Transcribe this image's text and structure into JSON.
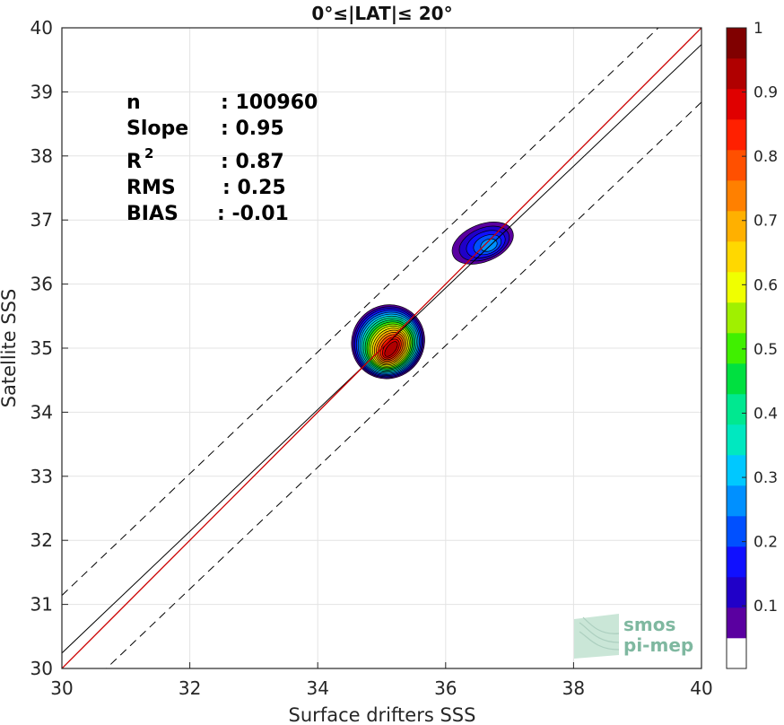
{
  "chart_data": {
    "type": "heatmap",
    "title": "0°≤|LAT|≤ 20°",
    "xlabel": "Surface drifters SSS",
    "ylabel": "Satellite SSS",
    "xlim": [
      30,
      40
    ],
    "ylim": [
      30,
      40
    ],
    "xticks": [
      "30",
      "32",
      "34",
      "36",
      "38",
      "40"
    ],
    "yticks": [
      "30",
      "31",
      "32",
      "33",
      "34",
      "35",
      "36",
      "37",
      "38",
      "39",
      "40"
    ],
    "grid": true,
    "stats": [
      {
        "label": "n",
        "value": ": 100960"
      },
      {
        "label": "Slope",
        "value": ": 0.95"
      },
      {
        "label": "R",
        "sup": "2",
        "value": ": 0.87"
      },
      {
        "label": "RMS",
        "value": ": 0.25"
      },
      {
        "label": "BIAS",
        "value": ": -0.01"
      }
    ],
    "lines": {
      "identity": {
        "slope": 1.0,
        "intercept": 0.0,
        "color": "#cc0000"
      },
      "fit": {
        "slope": 0.95,
        "intercept": 1.74,
        "color": "#000000"
      },
      "bounds_offset": 0.9
    },
    "density_peaks": [
      {
        "x": 35.1,
        "y": 35.1,
        "value": 1.0
      },
      {
        "x": 36.7,
        "y": 36.6,
        "value": 0.3
      }
    ],
    "colorbar": {
      "ticks": [
        "0.1",
        "0.2",
        "0.3",
        "0.4",
        "0.5",
        "0.6",
        "0.7",
        "0.8",
        "0.9",
        "1"
      ],
      "colors": [
        "#ffffff",
        "#5a00a0",
        "#2000c8",
        "#1010ff",
        "#0050ff",
        "#0090ff",
        "#00c8ff",
        "#00e8c0",
        "#00e890",
        "#00e040",
        "#40f000",
        "#a0f000",
        "#f0ff00",
        "#ffd800",
        "#ffb000",
        "#ff8000",
        "#ff5000",
        "#ff2000",
        "#e00000",
        "#b00000",
        "#800000"
      ]
    }
  },
  "logo": {
    "line1": "smos",
    "line2": "pi-mep"
  }
}
